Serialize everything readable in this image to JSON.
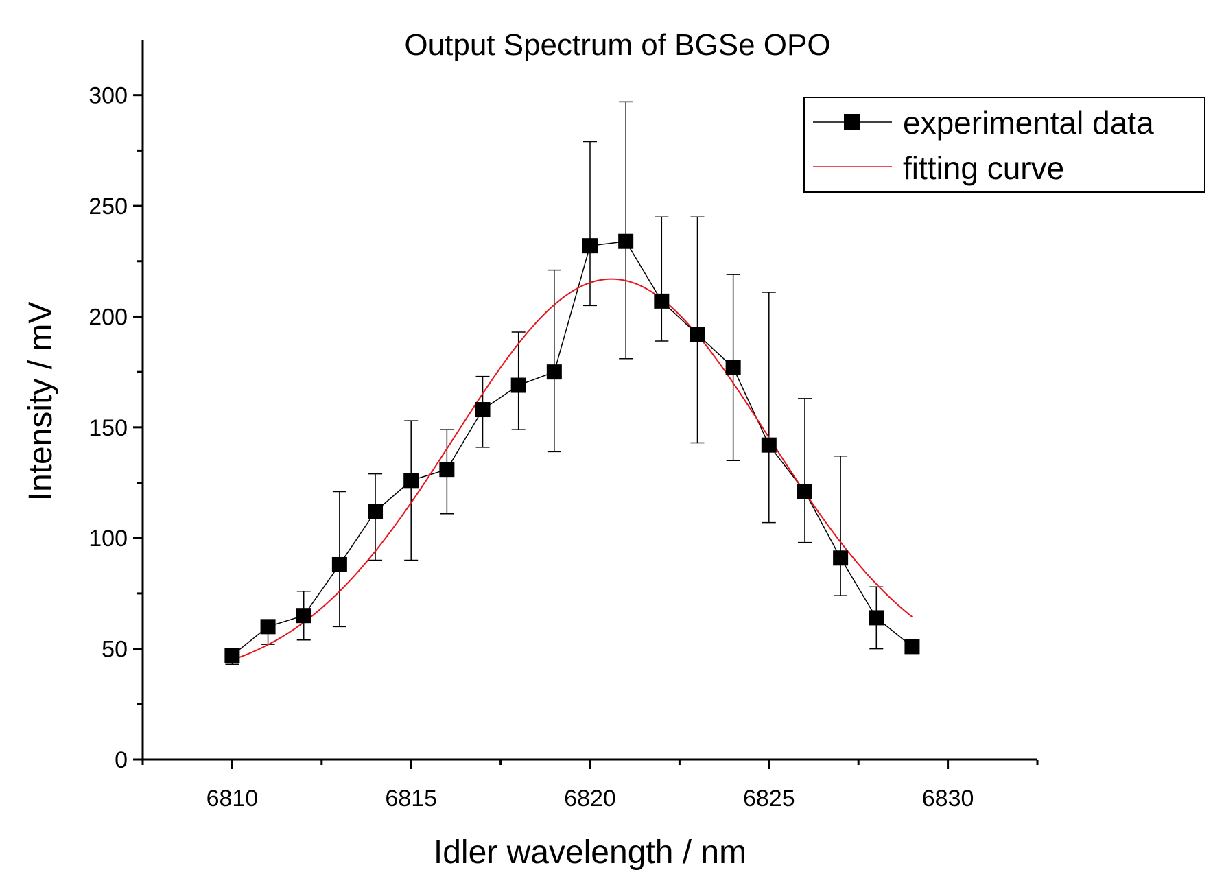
{
  "chart_data": {
    "type": "scatter",
    "title": "Output Spectrum of BGSe OPO",
    "xlabel": "Idler wavelength / nm",
    "ylabel": "Intensity / mV",
    "xlim": [
      6807.5,
      6832.5
    ],
    "ylim": [
      0,
      325
    ],
    "xticks": [
      6810,
      6815,
      6820,
      6825,
      6830
    ],
    "yticks": [
      0,
      50,
      100,
      150,
      200,
      250,
      300
    ],
    "legend_position": "top-right",
    "series": [
      {
        "name": "experimental data",
        "style": "line-with-square-markers",
        "color": "#000000",
        "x": [
          6810,
          6811,
          6812,
          6813,
          6814,
          6815,
          6816,
          6817,
          6818,
          6819,
          6820,
          6821,
          6822,
          6823,
          6824,
          6825,
          6826,
          6827,
          6828,
          6829
        ],
        "y": [
          47,
          60,
          65,
          88,
          112,
          126,
          131,
          158,
          169,
          175,
          232,
          234,
          207,
          192,
          177,
          142,
          121,
          91,
          64,
          51
        ],
        "err_low": [
          43,
          52,
          54,
          60,
          90,
          90,
          111,
          141,
          149,
          139,
          205,
          181,
          189,
          143,
          135,
          107,
          98,
          74,
          50,
          51
        ],
        "err_high": [
          50,
          62,
          76,
          121,
          129,
          153,
          149,
          173,
          193,
          221,
          279,
          297,
          245,
          245,
          219,
          211,
          163,
          137,
          78,
          51
        ]
      },
      {
        "name": "fitting curve",
        "style": "line",
        "color": "#e8141b",
        "model": "gaussian",
        "y0": 35,
        "amplitude": 182,
        "center": 6820.6,
        "sigma": 4.4,
        "x_range": [
          6810,
          6829
        ]
      }
    ]
  }
}
